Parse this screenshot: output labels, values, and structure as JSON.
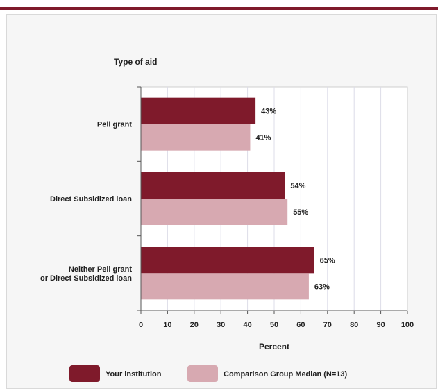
{
  "chart_data": {
    "type": "bar",
    "orientation": "horizontal",
    "title": "Type of aid",
    "xlabel": "Percent",
    "ylabel": "",
    "xlim": [
      0,
      100
    ],
    "xticks": [
      "0",
      "10",
      "20",
      "30",
      "40",
      "50",
      "60",
      "70",
      "80",
      "90",
      "100"
    ],
    "categories": [
      [
        "Pell grant"
      ],
      [
        "Direct Subsidized loan"
      ],
      [
        "Neither Pell grant",
        "or Direct Subsidized loan"
      ]
    ],
    "series": [
      {
        "name": "Your institution",
        "values": [
          43,
          54,
          65
        ],
        "labels": [
          "43%",
          "54%",
          "65%"
        ],
        "color": "#7f1a2b"
      },
      {
        "name": "Comparison Group Median (N=13)",
        "values": [
          41,
          55,
          63
        ],
        "labels": [
          "41%",
          "55%",
          "63%"
        ],
        "color": "#d7a9b1"
      }
    ],
    "grid": "vertical",
    "legend_position": "bottom"
  }
}
